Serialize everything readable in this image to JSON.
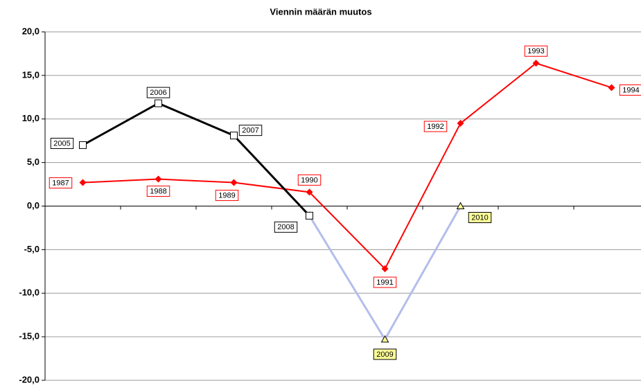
{
  "chart_data": {
    "type": "line",
    "title": "Viennin määrän muutos",
    "categories": [
      null,
      null,
      null,
      null,
      null,
      null,
      null,
      null
    ],
    "ylim": [
      -20,
      20
    ],
    "yticks": [
      {
        "value": -20,
        "label": "-20,0"
      },
      {
        "value": -15,
        "label": "-15,0"
      },
      {
        "value": -10,
        "label": "-10,0"
      },
      {
        "value": -5,
        "label": "-5,0"
      },
      {
        "value": 0,
        "label": "0,0"
      },
      {
        "value": 5,
        "label": "5,0"
      },
      {
        "value": 10,
        "label": "10,0"
      },
      {
        "value": 15,
        "label": "15,0"
      },
      {
        "value": 20,
        "label": "20,0"
      }
    ],
    "grid": true,
    "series": [
      {
        "color": "#ff0000",
        "marker": "diamond",
        "values": [
          2.7,
          3.1,
          2.7,
          1.6,
          -7.2,
          9.5,
          16.4,
          13.6
        ],
        "labels": [
          "1987",
          "1988",
          "1989",
          "1990",
          "1991",
          "1992",
          "1993",
          "1994"
        ]
      },
      {
        "color": "#b4bdeb",
        "marker": "triangle",
        "values": [
          null,
          null,
          null,
          -1.1,
          -15.3,
          0.0,
          null,
          null
        ],
        "labels": [
          null,
          null,
          null,
          null,
          "2009",
          "2010",
          null,
          null
        ]
      },
      {
        "color": "#000000",
        "marker": "square",
        "values": [
          7.0,
          11.8,
          8.1,
          -1.1,
          null,
          null,
          null,
          null
        ],
        "labels": [
          "2005",
          "2006",
          "2007",
          "2008",
          null,
          null,
          null,
          null
        ]
      }
    ]
  }
}
